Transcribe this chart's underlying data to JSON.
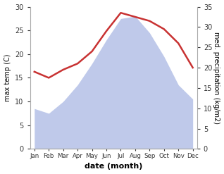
{
  "months": [
    "Jan",
    "Feb",
    "Mar",
    "Apr",
    "May",
    "Jun",
    "Jul",
    "Aug",
    "Sep",
    "Oct",
    "Nov",
    "Dec"
  ],
  "max_temp": [
    8.5,
    7.5,
    10.0,
    13.5,
    18.0,
    23.0,
    27.5,
    28.0,
    24.5,
    19.5,
    13.5,
    10.5
  ],
  "precipitation": [
    19.0,
    17.5,
    19.5,
    21.0,
    24.0,
    29.0,
    33.5,
    32.5,
    31.5,
    29.5,
    26.0,
    20.0
  ],
  "temp_ylim": [
    0,
    30
  ],
  "precip_ylim": [
    0,
    35
  ],
  "temp_fill_color": "#b8c4e8",
  "precip_line_color": "#c83232",
  "xlabel": "date (month)",
  "ylabel_left": "max temp (C)",
  "ylabel_right": "med. precipitation (kg/m2)",
  "temp_yticks": [
    0,
    5,
    10,
    15,
    20,
    25,
    30
  ],
  "precip_yticks": [
    0,
    5,
    10,
    15,
    20,
    25,
    30,
    35
  ],
  "background_color": "#ffffff"
}
